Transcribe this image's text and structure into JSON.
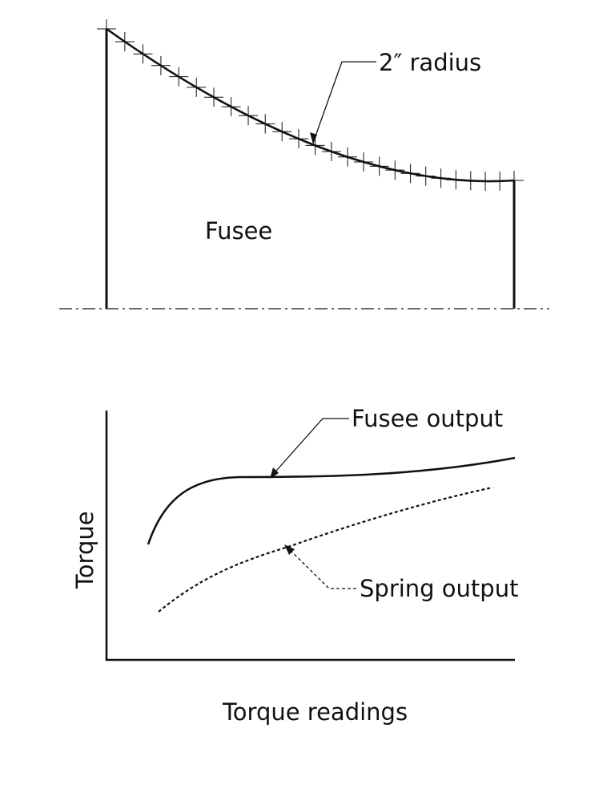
{
  "fusee_profile": {
    "body_label": "Fusee",
    "radius_callout": "2″ radius"
  },
  "torque_graph": {
    "y_axis_label": "Torque",
    "x_axis_label": "Torque readings",
    "fusee_output_label": "Fusee output",
    "spring_output_label": "Spring output"
  }
}
